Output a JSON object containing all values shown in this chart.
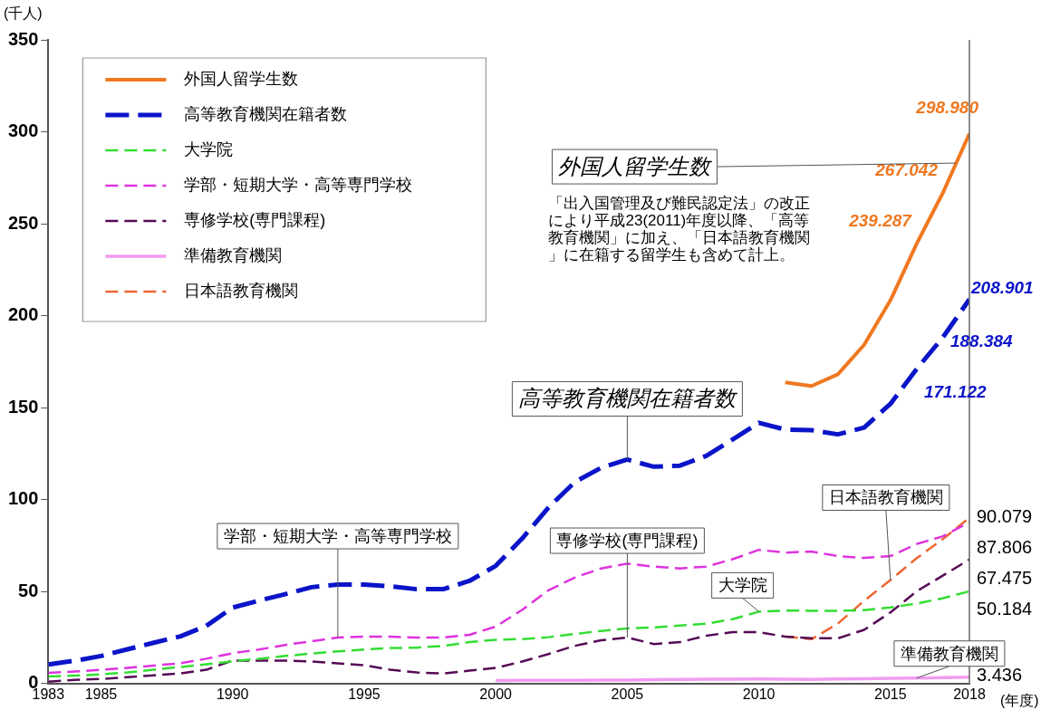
{
  "chart_data": {
    "type": "line",
    "ylabel": "(千人)",
    "xlabel": "(年度)",
    "x": [
      1983,
      1984,
      1985,
      1986,
      1987,
      1988,
      1989,
      1990,
      1991,
      1992,
      1993,
      1994,
      1995,
      1996,
      1997,
      1998,
      1999,
      2000,
      2001,
      2002,
      2003,
      2004,
      2005,
      2006,
      2007,
      2008,
      2009,
      2010,
      2011,
      2012,
      2013,
      2014,
      2015,
      2016,
      2017,
      2018
    ],
    "xlim": [
      1983,
      2018
    ],
    "xticks": [
      1983,
      1985,
      1990,
      1995,
      2000,
      2005,
      2010,
      2015,
      2018
    ],
    "ylim": [
      0,
      350
    ],
    "yticks": [
      0,
      50,
      100,
      150,
      200,
      250,
      300,
      350
    ],
    "grid": false,
    "legend": "top left",
    "marker": "none",
    "series": [
      {
        "name": "外国人留学生数",
        "color": "#f07820",
        "line_style": "solid",
        "values": [
          null,
          null,
          null,
          null,
          null,
          null,
          null,
          null,
          null,
          null,
          null,
          null,
          null,
          null,
          null,
          null,
          null,
          null,
          null,
          null,
          null,
          null,
          null,
          null,
          null,
          null,
          null,
          null,
          163.7,
          161.8,
          168.1,
          184.2,
          208.4,
          239.287,
          267.042,
          298.98
        ],
        "value_labels": [
          null,
          null,
          null,
          null,
          null,
          null,
          null,
          null,
          null,
          null,
          null,
          null,
          null,
          null,
          null,
          null,
          null,
          null,
          null,
          null,
          null,
          null,
          null,
          null,
          null,
          null,
          null,
          null,
          null,
          null,
          null,
          null,
          null,
          "239.287",
          "267.042",
          "298.980"
        ]
      },
      {
        "name": "高等教育機関在籍者数",
        "color": "#0a14c8",
        "line_style": "dashed",
        "values": [
          10.4,
          12.4,
          15.0,
          18.6,
          22.2,
          25.6,
          31.3,
          41.3,
          45.1,
          48.6,
          52.4,
          53.8,
          53.8,
          52.9,
          51.3,
          51.3,
          55.8,
          64.0,
          78.8,
          95.6,
          109.5,
          117.3,
          121.8,
          117.9,
          118.5,
          123.8,
          132.7,
          141.8,
          138.1,
          137.8,
          135.5,
          139.2,
          152.1,
          171.122,
          188.384,
          208.901
        ],
        "value_labels": [
          null,
          null,
          null,
          null,
          null,
          null,
          null,
          null,
          null,
          null,
          null,
          null,
          null,
          null,
          null,
          null,
          null,
          null,
          null,
          null,
          null,
          null,
          null,
          null,
          null,
          null,
          null,
          null,
          null,
          null,
          null,
          null,
          null,
          "171.122",
          "188.384",
          "208.901"
        ]
      },
      {
        "name": "大学院",
        "color": "#33dd33",
        "line_style": "dashed",
        "values": [
          3.8,
          4.3,
          5.0,
          6.0,
          7.5,
          9.0,
          10.5,
          12.0,
          13.5,
          15.0,
          16.3,
          17.5,
          18.5,
          19.3,
          19.5,
          20.5,
          22.5,
          23.8,
          24.2,
          25.2,
          27.0,
          28.6,
          30.0,
          30.5,
          31.5,
          32.5,
          35.0,
          39.1,
          39.7,
          39.6,
          39.6,
          39.9,
          41.4,
          43.5,
          46.4,
          50.184
        ],
        "value_labels": [
          null,
          null,
          null,
          null,
          null,
          null,
          null,
          null,
          null,
          null,
          null,
          null,
          null,
          null,
          null,
          null,
          null,
          null,
          null,
          null,
          null,
          null,
          null,
          null,
          null,
          null,
          null,
          null,
          null,
          null,
          null,
          null,
          null,
          null,
          null,
          "50.184"
        ]
      },
      {
        "name": "学部・短期大学・高等専門学校",
        "color": "#dd33dd",
        "line_style": "dashed",
        "values": [
          5.8,
          6.5,
          7.5,
          8.5,
          9.8,
          11.0,
          13.5,
          16.5,
          18.5,
          21.0,
          23.0,
          25.0,
          25.5,
          25.5,
          25.0,
          25.0,
          26.5,
          31.0,
          40.0,
          50.7,
          57.6,
          62.6,
          65.2,
          63.6,
          62.6,
          63.6,
          67.6,
          72.7,
          71.2,
          71.8,
          69.3,
          68.3,
          69.3,
          75.9,
          80.1,
          87.806
        ],
        "value_labels": [
          null,
          null,
          null,
          null,
          null,
          null,
          null,
          null,
          null,
          null,
          null,
          null,
          null,
          null,
          null,
          null,
          null,
          null,
          null,
          null,
          null,
          null,
          null,
          null,
          null,
          null,
          null,
          null,
          null,
          null,
          null,
          null,
          null,
          null,
          null,
          "87.806"
        ]
      },
      {
        "name": "専修学校(専門課程)",
        "color": "#550a55",
        "line_style": "dashed",
        "values": [
          1.0,
          2.0,
          2.5,
          3.5,
          4.5,
          5.5,
          7.5,
          12.5,
          12.5,
          12.5,
          12.0,
          11.0,
          10.0,
          7.5,
          6.0,
          5.5,
          7.0,
          8.5,
          12.0,
          16.0,
          20.5,
          23.5,
          25.0,
          21.5,
          22.5,
          26.0,
          28.0,
          27.9,
          25.5,
          24.6,
          24.6,
          29.2,
          38.7,
          50.2,
          58.8,
          67.475
        ],
        "value_labels": [
          null,
          null,
          null,
          null,
          null,
          null,
          null,
          null,
          null,
          null,
          null,
          null,
          null,
          null,
          null,
          null,
          null,
          null,
          null,
          null,
          null,
          null,
          null,
          null,
          null,
          null,
          null,
          null,
          null,
          null,
          null,
          null,
          null,
          null,
          null,
          "67.475"
        ]
      },
      {
        "name": "準備教育機関",
        "color": "#f09cf0",
        "line_style": "solid",
        "values": [
          null,
          null,
          null,
          null,
          null,
          null,
          null,
          null,
          null,
          null,
          null,
          null,
          null,
          null,
          null,
          null,
          null,
          1.6,
          1.7,
          1.8,
          1.8,
          1.9,
          1.9,
          2.1,
          2.2,
          2.4,
          2.4,
          2.5,
          2.4,
          2.3,
          2.5,
          2.6,
          2.8,
          3.0,
          3.2,
          3.436
        ],
        "value_labels": [
          null,
          null,
          null,
          null,
          null,
          null,
          null,
          null,
          null,
          null,
          null,
          null,
          null,
          null,
          null,
          null,
          null,
          null,
          null,
          null,
          null,
          null,
          null,
          null,
          null,
          null,
          null,
          null,
          null,
          null,
          null,
          null,
          null,
          null,
          null,
          "3.436"
        ]
      },
      {
        "name": "日本語教育機関",
        "color": "#ee6633",
        "line_style": "dashed",
        "values": [
          null,
          null,
          null,
          null,
          null,
          null,
          null,
          null,
          null,
          null,
          null,
          null,
          null,
          null,
          null,
          null,
          null,
          null,
          null,
          null,
          null,
          null,
          null,
          null,
          null,
          null,
          null,
          null,
          25.6,
          24.1,
          32.6,
          45.0,
          56.3,
          68.2,
          78.7,
          90.079
        ],
        "value_labels": [
          null,
          null,
          null,
          null,
          null,
          null,
          null,
          null,
          null,
          null,
          null,
          null,
          null,
          null,
          null,
          null,
          null,
          null,
          null,
          null,
          null,
          null,
          null,
          null,
          null,
          null,
          null,
          null,
          null,
          null,
          null,
          null,
          null,
          null,
          null,
          "90.079"
        ]
      }
    ],
    "annotations": [
      {
        "text": "外国人留学生数",
        "x": 2017.5,
        "y": 283
      },
      {
        "text": "高等教育機関在籍者数",
        "x": 2005,
        "y": 121.8
      },
      {
        "text": "学部・短期大学・高等専門学校",
        "x": 1994,
        "y": 25
      },
      {
        "text": "専修学校(専門課程)",
        "x": 2005,
        "y": 25
      },
      {
        "text": "大学院",
        "x": 2010,
        "y": 39.1
      },
      {
        "text": "日本語教育機関",
        "x": 2015,
        "y": 56.3
      },
      {
        "text": "準備教育機関",
        "x": 2016,
        "y": 3.0
      },
      "「出入国管理及び難民認定法」の改正により平成23(2011)年度以降、「高等教育機関」に加え、「日本語教育機関」に在籍する留学生も含めて計上。"
    ]
  }
}
